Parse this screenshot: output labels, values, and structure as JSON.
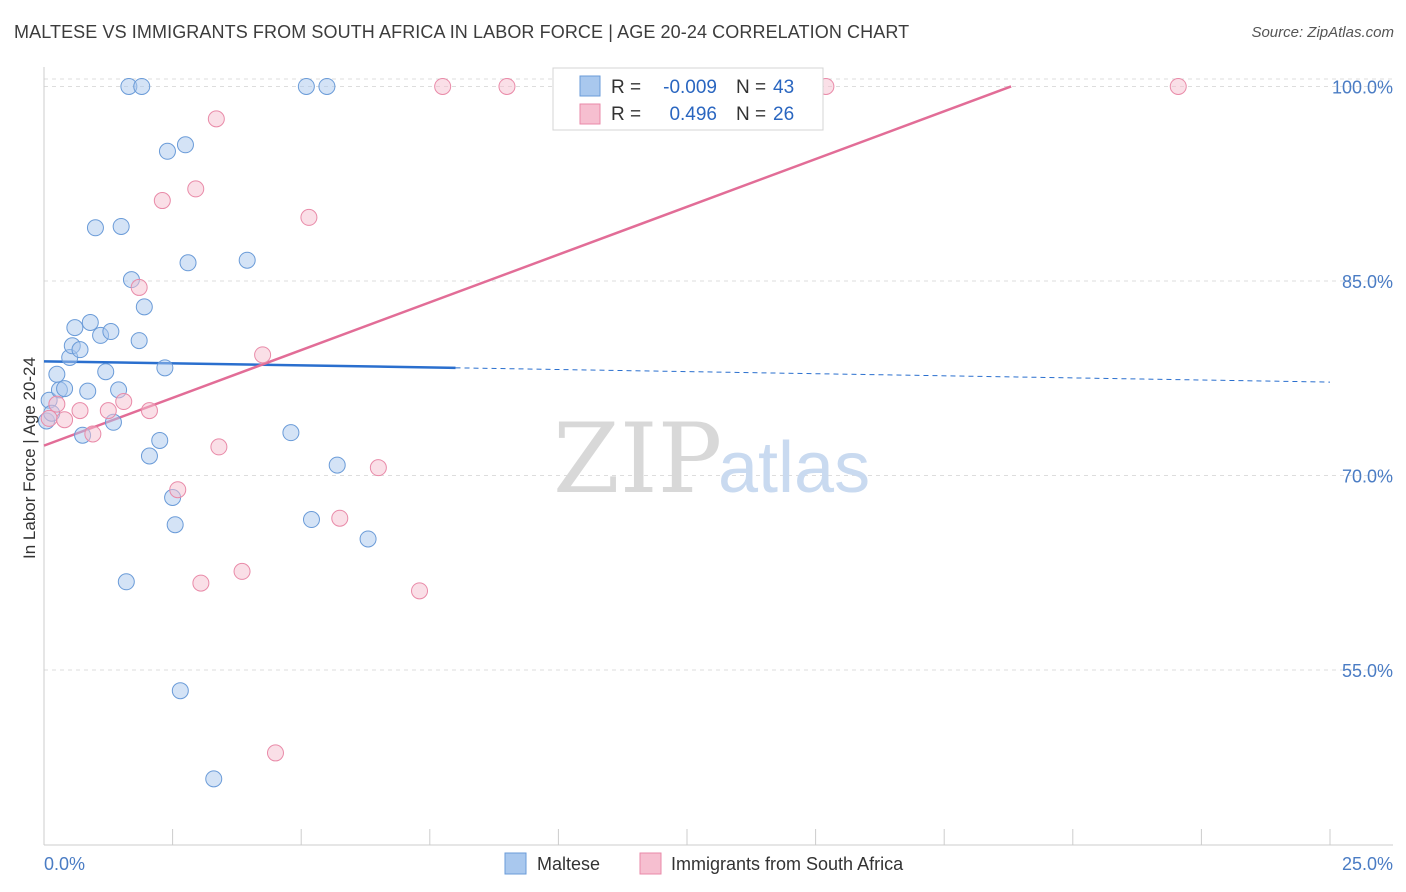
{
  "title": "MALTESE VS IMMIGRANTS FROM SOUTH AFRICA IN LABOR FORCE | AGE 20-24 CORRELATION CHART",
  "source": "Source: ZipAtlas.com",
  "watermark": {
    "zip": "ZIP",
    "atlas": "atlas"
  },
  "colors": {
    "blue_fill": "#a9c8ee",
    "blue_stroke": "#6a9bd8",
    "blue_line": "#2a6fce",
    "pink_fill": "#f6bfd0",
    "pink_stroke": "#e98aa8",
    "pink_line": "#e26d97",
    "tick_text": "#4a7cc4",
    "grid": "#dddddd"
  },
  "legend": {
    "rows": [
      {
        "r_label": "R =",
        "r_value": "-0.009",
        "n_label": "N =",
        "n_value": "43",
        "series": "Maltese"
      },
      {
        "r_label": "R =",
        "r_value": "0.496",
        "n_label": "N =",
        "n_value": "26",
        "series": "Immigrants from South Africa"
      }
    ]
  },
  "bottom_legend": [
    "Maltese",
    "Immigrants from South Africa"
  ],
  "chart_data": {
    "type": "scatter",
    "title": "MALTESE VS IMMIGRANTS FROM SOUTH AFRICA IN LABOR FORCE | AGE 20-24 CORRELATION CHART",
    "xlabel": "",
    "ylabel": "In Labor Force | Age 20-24",
    "xlim": [
      0,
      25
    ],
    "ylim": [
      41.5,
      101.5
    ],
    "x_tick_labels": [
      "0.0%",
      "25.0%"
    ],
    "y_ticks": [
      55,
      70,
      85,
      100
    ],
    "y_tick_labels": [
      "55.0%",
      "70.0%",
      "85.0%",
      "100.0%"
    ],
    "grid": true,
    "series": [
      {
        "name": "Maltese",
        "color": "#a9c8ee",
        "points": [
          [
            0.05,
            74.2
          ],
          [
            0.1,
            75.8
          ],
          [
            0.15,
            74.8
          ],
          [
            0.25,
            77.8
          ],
          [
            0.3,
            76.6
          ],
          [
            0.4,
            76.7
          ],
          [
            0.5,
            79.1
          ],
          [
            0.55,
            80.0
          ],
          [
            0.6,
            81.4
          ],
          [
            0.7,
            79.7
          ],
          [
            0.75,
            73.1
          ],
          [
            0.85,
            76.5
          ],
          [
            0.9,
            81.8
          ],
          [
            1.0,
            89.1
          ],
          [
            1.1,
            80.8
          ],
          [
            1.2,
            78.0
          ],
          [
            1.3,
            81.1
          ],
          [
            1.35,
            74.1
          ],
          [
            1.45,
            76.6
          ],
          [
            1.5,
            89.2
          ],
          [
            1.6,
            61.8
          ],
          [
            1.65,
            100.0
          ],
          [
            1.7,
            85.1
          ],
          [
            1.85,
            80.4
          ],
          [
            1.9,
            100.0
          ],
          [
            1.95,
            83.0
          ],
          [
            2.05,
            71.5
          ],
          [
            2.25,
            72.7
          ],
          [
            2.35,
            78.3
          ],
          [
            2.4,
            95.0
          ],
          [
            2.5,
            68.3
          ],
          [
            2.55,
            66.2
          ],
          [
            2.65,
            53.4
          ],
          [
            2.75,
            95.5
          ],
          [
            2.8,
            86.4
          ],
          [
            3.3,
            46.6
          ],
          [
            3.95,
            86.6
          ],
          [
            4.8,
            73.3
          ],
          [
            5.1,
            100.0
          ],
          [
            5.2,
            66.6
          ],
          [
            5.5,
            100.0
          ],
          [
            5.7,
            70.8
          ],
          [
            6.3,
            65.1
          ]
        ]
      },
      {
        "name": "Immigrants from South Africa",
        "color": "#f6bfd0",
        "points": [
          [
            0.1,
            74.4
          ],
          [
            0.25,
            75.5
          ],
          [
            0.4,
            74.3
          ],
          [
            0.7,
            75.0
          ],
          [
            0.95,
            73.2
          ],
          [
            1.25,
            75.0
          ],
          [
            1.55,
            75.7
          ],
          [
            1.85,
            84.5
          ],
          [
            2.05,
            75.0
          ],
          [
            2.3,
            91.2
          ],
          [
            2.6,
            68.9
          ],
          [
            2.95,
            92.1
          ],
          [
            3.05,
            61.7
          ],
          [
            3.35,
            97.5
          ],
          [
            3.4,
            72.2
          ],
          [
            3.85,
            62.6
          ],
          [
            4.25,
            79.3
          ],
          [
            4.5,
            48.6
          ],
          [
            5.15,
            89.9
          ],
          [
            5.75,
            66.7
          ],
          [
            6.5,
            70.6
          ],
          [
            7.3,
            61.1
          ],
          [
            7.75,
            100.0
          ],
          [
            9.0,
            100.0
          ],
          [
            15.2,
            100.0
          ],
          [
            22.05,
            100.0
          ]
        ]
      }
    ],
    "trend_lines": [
      {
        "series": "Maltese",
        "x": [
          0,
          8.0
        ],
        "y": [
          78.8,
          78.3
        ],
        "style": "solid"
      },
      {
        "series": "Maltese",
        "x": [
          8.0,
          25.0
        ],
        "y": [
          78.3,
          77.2
        ],
        "style": "dashed"
      },
      {
        "series": "Immigrants from South Africa",
        "x": [
          0,
          18.8
        ],
        "y": [
          72.3,
          100.0
        ],
        "style": "solid"
      }
    ]
  }
}
